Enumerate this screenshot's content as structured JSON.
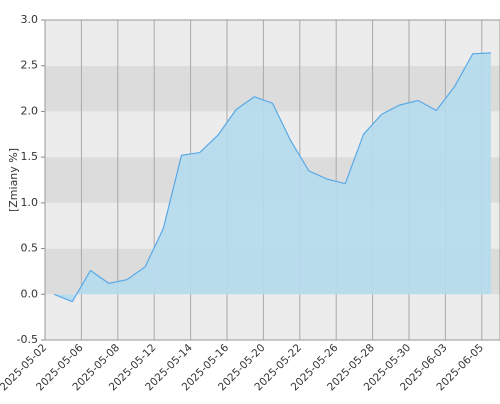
{
  "chart_data": {
    "type": "area",
    "y_label": "[Zmiany %]",
    "categories": [
      "2025-05-02",
      null,
      "2025-05-06",
      null,
      "2025-05-08",
      null,
      "2025-05-12",
      null,
      "2025-05-14",
      null,
      "2025-05-16",
      null,
      "2025-05-20",
      null,
      "2025-05-22",
      null,
      "2025-05-26",
      null,
      "2025-05-28",
      null,
      "2025-05-30",
      null,
      "2025-06-03",
      null,
      "2025-06-05"
    ],
    "values": [
      0.0,
      -0.08,
      0.26,
      0.12,
      0.16,
      0.3,
      0.72,
      1.52,
      1.55,
      1.74,
      2.02,
      2.16,
      2.09,
      1.68,
      1.35,
      1.26,
      1.21,
      1.75,
      1.97,
      2.07,
      2.12,
      2.01,
      2.27,
      2.63,
      2.64
    ],
    "color": "#5aa9e6",
    "fill": "#b5dcee",
    "ylim": [
      -0.5,
      3.0
    ],
    "yticks": [
      -0.5,
      {
        "value": 0,
        "label": "0.0"
      },
      0.5,
      {
        "value": 1,
        "label": "1.0"
      },
      1.5,
      {
        "value": 2,
        "label": "2.0"
      },
      2.5,
      {
        "value": 3,
        "label": "3.0"
      }
    ],
    "grid": true
  }
}
